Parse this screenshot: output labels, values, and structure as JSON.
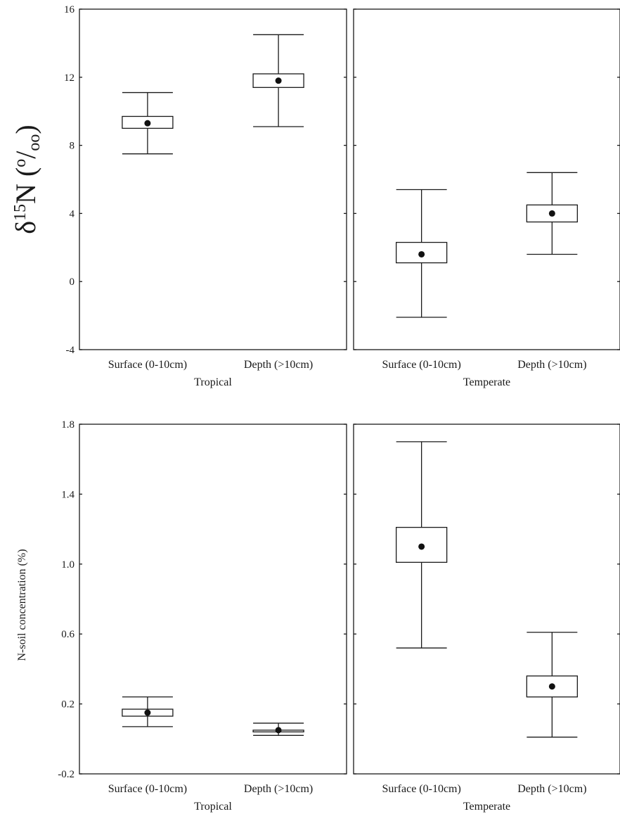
{
  "chart_data": [
    {
      "type": "box",
      "ylabel": "δ15N (o/oo)",
      "ylabel_parts": {
        "delta": "δ",
        "sup": "15",
        "element": "N",
        "open": " (",
        "per_o": "o",
        "per_slash": "/",
        "per_oo": "oo",
        "close": ")"
      },
      "ylim": [
        -4,
        16
      ],
      "yticks": [
        "-4",
        "0",
        "4",
        "8",
        "12",
        "16"
      ],
      "panels": [
        {
          "group": "Tropical",
          "categories": [
            "Surface (0-10cm)",
            "Depth (>10cm)"
          ],
          "boxes": [
            {
              "whisker_low": 7.5,
              "box_low": 9.0,
              "mean": 9.3,
              "box_high": 9.7,
              "whisker_high": 11.1
            },
            {
              "whisker_low": 9.1,
              "box_low": 11.4,
              "mean": 11.8,
              "box_high": 12.2,
              "whisker_high": 14.5
            }
          ]
        },
        {
          "group": "Temperate",
          "categories": [
            "Surface (0-10cm)",
            "Depth (>10cm)"
          ],
          "boxes": [
            {
              "whisker_low": -2.1,
              "box_low": 1.1,
              "mean": 1.6,
              "box_high": 2.3,
              "whisker_high": 5.4
            },
            {
              "whisker_low": 1.6,
              "box_low": 3.5,
              "mean": 4.0,
              "box_high": 4.5,
              "whisker_high": 6.4
            }
          ]
        }
      ]
    },
    {
      "type": "box",
      "ylabel": "N-soil concentration (%)",
      "ylim": [
        -0.2,
        1.8
      ],
      "yticks": [
        "-0.2",
        "0.2",
        "0.6",
        "1.0",
        "1.4",
        "1.8"
      ],
      "panels": [
        {
          "group": "Tropical",
          "categories": [
            "Surface (0-10cm)",
            "Depth (>10cm)"
          ],
          "boxes": [
            {
              "whisker_low": 0.07,
              "box_low": 0.13,
              "mean": 0.15,
              "box_high": 0.17,
              "whisker_high": 0.24
            },
            {
              "whisker_low": 0.02,
              "box_low": 0.04,
              "mean": 0.05,
              "box_high": 0.05,
              "whisker_high": 0.09
            }
          ]
        },
        {
          "group": "Temperate",
          "categories": [
            "Surface (0-10cm)",
            "Depth (>10cm)"
          ],
          "boxes": [
            {
              "whisker_low": 0.52,
              "box_low": 1.01,
              "mean": 1.1,
              "box_high": 1.21,
              "whisker_high": 1.7
            },
            {
              "whisker_low": 0.01,
              "box_low": 0.24,
              "mean": 0.3,
              "box_high": 0.36,
              "whisker_high": 0.61
            }
          ]
        }
      ]
    }
  ]
}
